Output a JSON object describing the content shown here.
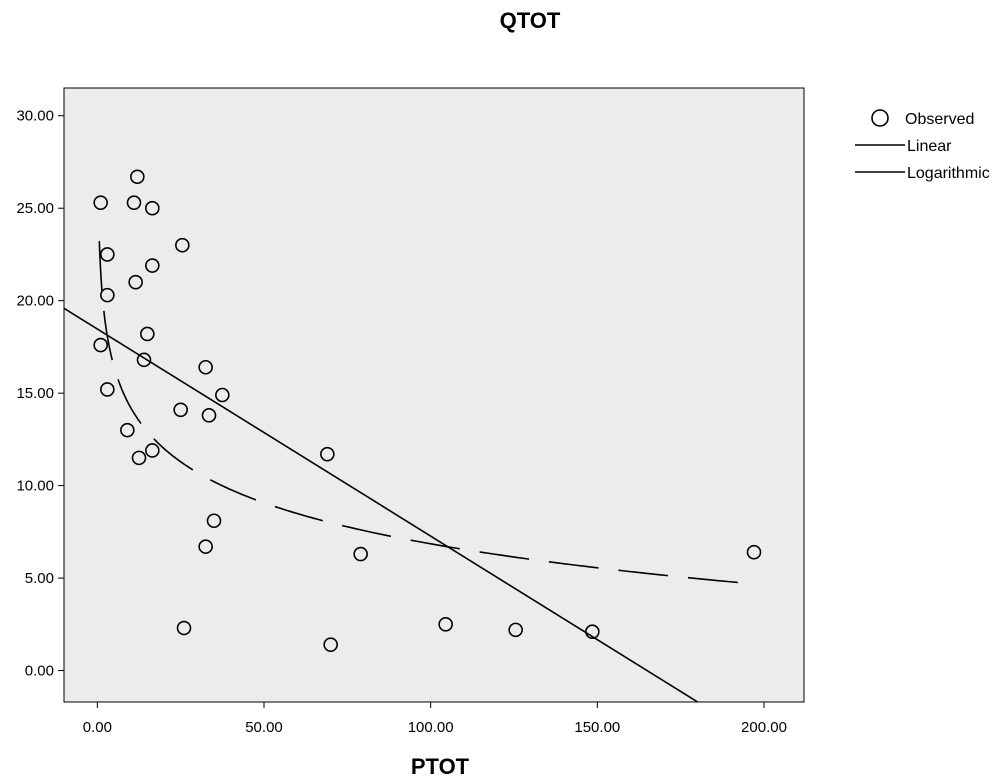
{
  "chart_data": {
    "type": "scatter",
    "title": "QTOT",
    "xlabel": "PTOT",
    "ylabel": "",
    "xlim": [
      -10,
      212
    ],
    "ylim": [
      -1.7,
      31.5
    ],
    "xticks": [
      0,
      50,
      100,
      150,
      200
    ],
    "yticks": [
      0,
      5,
      10,
      15,
      20,
      25,
      30
    ],
    "xtick_labels": [
      "0.00",
      "50.00",
      "100.00",
      "150.00",
      "200.00"
    ],
    "ytick_labels": [
      "0.00",
      "5.00",
      "10.00",
      "15.00",
      "20.00",
      "25.00",
      "30.00"
    ],
    "grid": false,
    "background": "#ececec",
    "legend_position": "right",
    "series": [
      {
        "name": "Observed",
        "kind": "points",
        "points": [
          [
            1,
            25.3
          ],
          [
            1,
            17.6
          ],
          [
            3,
            22.5
          ],
          [
            3,
            20.3
          ],
          [
            3,
            15.2
          ],
          [
            9,
            13.0
          ],
          [
            11,
            25.3
          ],
          [
            11.5,
            21.0
          ],
          [
            12,
            26.7
          ],
          [
            12.5,
            11.5
          ],
          [
            14,
            16.8
          ],
          [
            15,
            18.2
          ],
          [
            16.5,
            11.9
          ],
          [
            16.5,
            25.0
          ],
          [
            16.5,
            21.9
          ],
          [
            25,
            14.1
          ],
          [
            25.5,
            23.0
          ],
          [
            26,
            2.3
          ],
          [
            32.5,
            16.4
          ],
          [
            32.5,
            6.7
          ],
          [
            33.5,
            13.8
          ],
          [
            35,
            8.1
          ],
          [
            37.5,
            14.9
          ],
          [
            69,
            11.7
          ],
          [
            70,
            1.4
          ],
          [
            79,
            6.3
          ],
          [
            104.5,
            2.5
          ],
          [
            125.5,
            2.2
          ],
          [
            148.5,
            2.1
          ],
          [
            197,
            6.4
          ]
        ]
      },
      {
        "name": "Linear",
        "kind": "line",
        "intercept": 18.47,
        "slope": -0.112,
        "x_range": [
          -10,
          181
        ]
      },
      {
        "name": "Logarithmic",
        "kind": "dashed-curve",
        "intercept": 21.59,
        "slope": -3.2,
        "x_range": [
          0.6,
          195
        ]
      }
    ],
    "colors": {
      "lines": "#000000",
      "plot_background": "#ececec"
    }
  }
}
